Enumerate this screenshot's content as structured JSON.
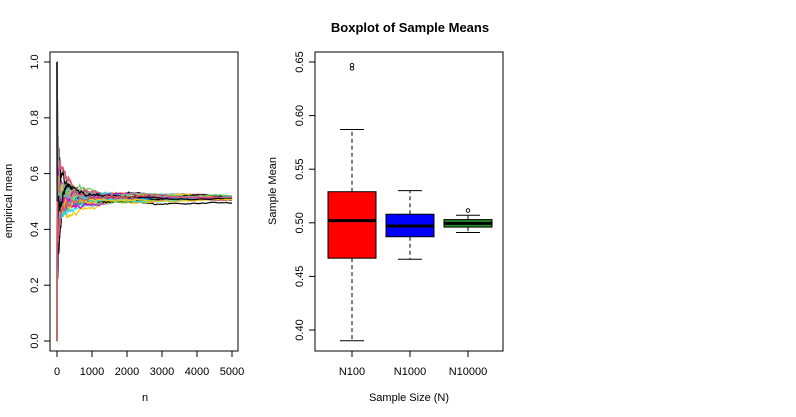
{
  "chart_data": [
    {
      "type": "line",
      "title": "",
      "xlabel": "n",
      "ylabel": "empirical mean",
      "xlim": [
        0,
        5000
      ],
      "ylim": [
        0,
        1.04
      ],
      "x_ticks": [
        "0",
        "1000",
        "2000",
        "3000",
        "4000",
        "5000"
      ],
      "x_tick_values": [
        0,
        1000,
        2000,
        3000,
        4000,
        5000
      ],
      "y_ticks": [
        "0.0",
        "0.2",
        "0.4",
        "0.6",
        "0.8",
        "1.0"
      ],
      "y_tick_values": [
        0.0,
        0.2,
        0.4,
        0.6,
        0.8,
        1.0
      ],
      "n_series": 50,
      "true_mean": 0.5,
      "series_colors": [
        "#000000",
        "#DF536B",
        "#61D04F",
        "#2297E6",
        "#28E2E5",
        "#CD0BBC",
        "#F5C710",
        "#9E9E9E"
      ],
      "grid": false,
      "legend": "none"
    },
    {
      "type": "box",
      "title": "Boxplot of Sample Means",
      "xlabel": "Sample Size (N)",
      "ylabel": "Sample Mean",
      "ylim": [
        0.383,
        0.66
      ],
      "y_ticks": [
        "0.40",
        "0.45",
        "0.50",
        "0.55",
        "0.60",
        "0.65"
      ],
      "y_tick_values": [
        0.4,
        0.45,
        0.5,
        0.55,
        0.6,
        0.65
      ],
      "categories": [
        "N100",
        "N1000",
        "N10000"
      ],
      "boxes": [
        {
          "name": "N100",
          "whisker_low": 0.39,
          "q1": 0.467,
          "median": 0.502,
          "q3": 0.529,
          "whisker_high": 0.587,
          "outliers": [
            0.644,
            0.647
          ],
          "color": "#FF0000"
        },
        {
          "name": "N1000",
          "whisker_low": 0.466,
          "q1": 0.487,
          "median": 0.497,
          "q3": 0.508,
          "whisker_high": 0.53,
          "outliers": [],
          "color": "#0000FF"
        },
        {
          "name": "N10000",
          "whisker_low": 0.491,
          "q1": 0.496,
          "median": 0.4995,
          "q3": 0.503,
          "whisker_high": 0.507,
          "outliers": [
            0.5115
          ],
          "color": "#228B22"
        }
      ],
      "grid": false,
      "legend": "none"
    }
  ]
}
